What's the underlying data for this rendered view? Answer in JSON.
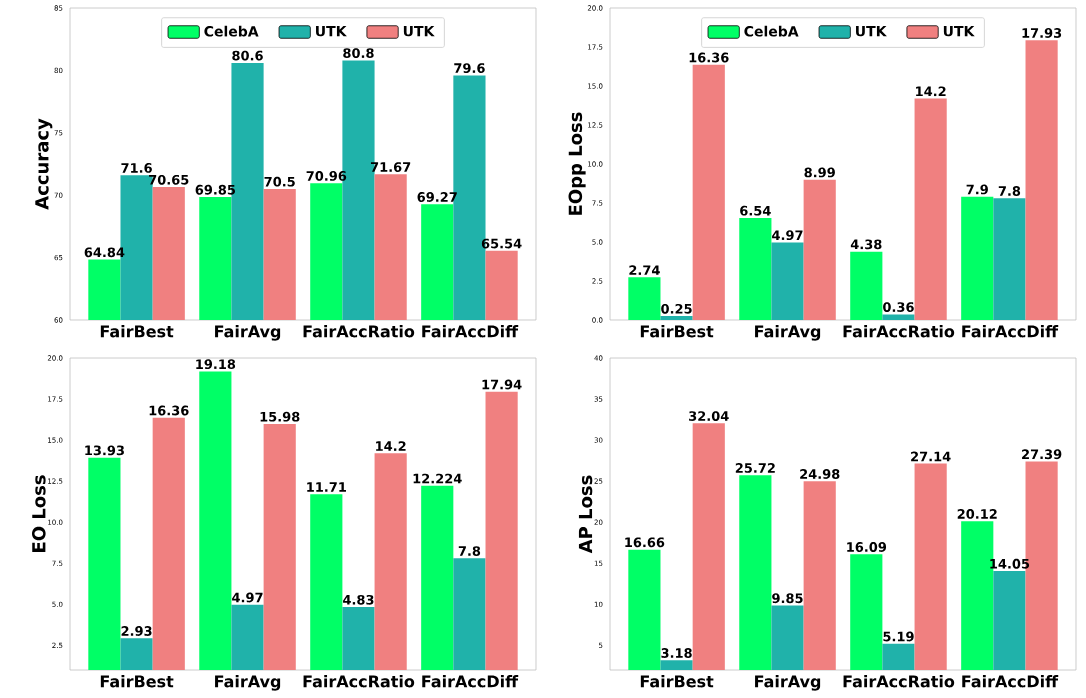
{
  "chart_data": [
    {
      "type": "bar",
      "ylabel": "Accuracy",
      "categories": [
        "FairBest",
        "FairAvg",
        "FairAccRatio",
        "FairAccDiff"
      ],
      "series": [
        {
          "name": "CelebA",
          "color": "#00ff66",
          "values": [
            64.84,
            69.85,
            70.96,
            69.27
          ]
        },
        {
          "name": "UTK",
          "color": "#20b2aa",
          "values": [
            71.6,
            80.6,
            80.8,
            79.6
          ]
        },
        {
          "name": "UTK",
          "color": "#f08080",
          "values": [
            70.65,
            70.5,
            71.67,
            65.54
          ]
        }
      ],
      "ylim": [
        60,
        85
      ],
      "yticks": [
        60,
        65,
        70,
        75,
        80,
        85
      ],
      "data_labels": true,
      "legend": "top"
    },
    {
      "type": "bar",
      "ylabel": "EOpp Loss",
      "categories": [
        "FairBest",
        "FairAvg",
        "FairAccRatio",
        "FairAccDiff"
      ],
      "series": [
        {
          "name": "CelebA",
          "color": "#00ff66",
          "values": [
            2.74,
            6.54,
            4.38,
            7.9
          ]
        },
        {
          "name": "UTK",
          "color": "#20b2aa",
          "values": [
            0.25,
            4.97,
            0.36,
            7.8
          ]
        },
        {
          "name": "UTK",
          "color": "#f08080",
          "values": [
            16.36,
            8.99,
            14.2,
            17.93
          ]
        }
      ],
      "ylim": [
        0,
        20
      ],
      "yticks": [
        {
          "value": 0,
          "label": "0.0"
        },
        2.5,
        {
          "value": 5,
          "label": "5.0"
        },
        7.5,
        {
          "value": 10,
          "label": "10.0"
        },
        12.5,
        {
          "value": 15,
          "label": "15.0"
        },
        17.5,
        {
          "value": 20,
          "label": "20.0"
        }
      ],
      "data_labels": true,
      "legend": "top"
    },
    {
      "type": "bar",
      "ylabel": "EO Loss",
      "categories": [
        "FairBest",
        "FairAvg",
        "FairAccRatio",
        "FairAccDiff"
      ],
      "series": [
        {
          "color": "#00ff66",
          "values": [
            13.93,
            19.18,
            11.71,
            12.224
          ]
        },
        {
          "color": "#20b2aa",
          "values": [
            2.93,
            4.97,
            4.83,
            7.8
          ]
        },
        {
          "color": "#f08080",
          "values": [
            16.36,
            15.98,
            14.2,
            17.94
          ]
        }
      ],
      "ylim": [
        1,
        20
      ],
      "yticks": [
        2.5,
        {
          "value": 5,
          "label": "5.0"
        },
        7.5,
        {
          "value": 10,
          "label": "10.0"
        },
        12.5,
        {
          "value": 15,
          "label": "15.0"
        },
        17.5,
        {
          "value": 20,
          "label": "20.0"
        }
      ],
      "data_labels": true
    },
    {
      "type": "bar",
      "ylabel": "AP Loss",
      "categories": [
        "FairBest",
        "FairAvg",
        "FairAccRatio",
        "FairAccDiff"
      ],
      "series": [
        {
          "color": "#00ff66",
          "values": [
            16.66,
            25.72,
            16.09,
            20.12
          ]
        },
        {
          "color": "#20b2aa",
          "values": [
            3.18,
            9.85,
            5.19,
            14.05
          ]
        },
        {
          "color": "#f08080",
          "values": [
            32.04,
            24.98,
            27.14,
            27.39
          ]
        }
      ],
      "ylim": [
        2,
        40
      ],
      "yticks": [
        5,
        10,
        15,
        20,
        25,
        30,
        35,
        40
      ],
      "data_labels": true
    }
  ]
}
